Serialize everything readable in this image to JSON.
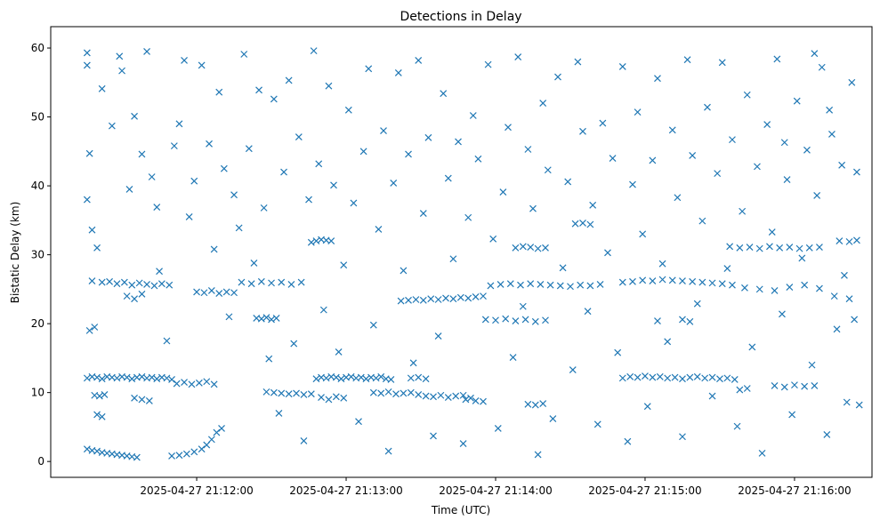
{
  "chart_data": {
    "type": "scatter",
    "title": "Detections in Delay",
    "xlabel": "Time (UTC)",
    "ylabel": "Bistatic Delay (km)",
    "x_units": "seconds relative to 2025-04-27 21:12:00 UTC",
    "xlim": [
      -58.6,
      271.1
    ],
    "ylim": [
      -2.3,
      63.1
    ],
    "grid": false,
    "marker": "x",
    "color": "#1f77b4",
    "x_ticks": [
      {
        "value": 0,
        "label": "2025-04-27 21:12:00"
      },
      {
        "value": 60,
        "label": "2025-04-27 21:13:00"
      },
      {
        "value": 120,
        "label": "2025-04-27 21:14:00"
      },
      {
        "value": 180,
        "label": "2025-04-27 21:15:00"
      },
      {
        "value": 240,
        "label": "2025-04-27 21:16:00"
      }
    ],
    "y_ticks": [
      {
        "value": 0,
        "label": "0"
      },
      {
        "value": 10,
        "label": "10"
      },
      {
        "value": 20,
        "label": "20"
      },
      {
        "value": 30,
        "label": "30"
      },
      {
        "value": 40,
        "label": "40"
      },
      {
        "value": 50,
        "label": "50"
      },
      {
        "value": 60,
        "label": "60"
      }
    ],
    "points": [
      [
        -44,
        12.1
      ],
      [
        -42,
        12.3
      ],
      [
        -40,
        12.2
      ],
      [
        -38,
        12.0
      ],
      [
        -36,
        12.3
      ],
      [
        -34,
        12.2
      ],
      [
        -32,
        12.1
      ],
      [
        -30,
        12.3
      ],
      [
        -28,
        12.2
      ],
      [
        -26,
        12.0
      ],
      [
        -24,
        12.2
      ],
      [
        -22,
        12.3
      ],
      [
        -20,
        12.1
      ],
      [
        -18,
        12.2
      ],
      [
        -16,
        12.0
      ],
      [
        -14,
        12.2
      ],
      [
        -12,
        12.1
      ],
      [
        -10,
        11.9
      ],
      [
        -44,
        1.8
      ],
      [
        -42,
        1.6
      ],
      [
        -40,
        1.5
      ],
      [
        -38,
        1.3
      ],
      [
        -36,
        1.2
      ],
      [
        -34,
        1.1
      ],
      [
        -32,
        1.0
      ],
      [
        -30,
        0.9
      ],
      [
        -28,
        0.8
      ],
      [
        -26,
        0.7
      ],
      [
        -24,
        0.6
      ],
      [
        -10,
        0.8
      ],
      [
        -7,
        0.9
      ],
      [
        -4,
        1.1
      ],
      [
        -1,
        1.4
      ],
      [
        2,
        1.8
      ],
      [
        4,
        2.4
      ],
      [
        6,
        3.2
      ],
      [
        8,
        4.2
      ],
      [
        10,
        4.8
      ],
      [
        -42,
        26.2
      ],
      [
        -38,
        26.0
      ],
      [
        -35,
        26.1
      ],
      [
        -32,
        25.8
      ],
      [
        -29,
        26.0
      ],
      [
        -26,
        25.6
      ],
      [
        -23,
        25.9
      ],
      [
        -20,
        25.7
      ],
      [
        -17,
        25.5
      ],
      [
        -14,
        25.8
      ],
      [
        -11,
        25.6
      ],
      [
        -28,
        24.0
      ],
      [
        -25,
        23.6
      ],
      [
        -22,
        24.3
      ],
      [
        0,
        24.6
      ],
      [
        3,
        24.5
      ],
      [
        6,
        24.8
      ],
      [
        9,
        24.4
      ],
      [
        12,
        24.6
      ],
      [
        15,
        24.5
      ],
      [
        -41,
        9.6
      ],
      [
        -39,
        9.5
      ],
      [
        -37,
        9.7
      ],
      [
        -40,
        6.8
      ],
      [
        -38,
        6.5
      ],
      [
        -8,
        11.3
      ],
      [
        -5,
        11.5
      ],
      [
        -2,
        11.2
      ],
      [
        1,
        11.4
      ],
      [
        4,
        11.6
      ],
      [
        7,
        11.2
      ],
      [
        -25,
        9.2
      ],
      [
        -22,
        9.0
      ],
      [
        -19,
        8.8
      ],
      [
        24,
        20.8
      ],
      [
        26,
        20.7
      ],
      [
        28,
        20.9
      ],
      [
        30,
        20.6
      ],
      [
        32,
        20.8
      ],
      [
        18,
        26.0
      ],
      [
        22,
        25.8
      ],
      [
        26,
        26.1
      ],
      [
        30,
        25.9
      ],
      [
        34,
        26.0
      ],
      [
        38,
        25.7
      ],
      [
        42,
        26.0
      ],
      [
        28,
        10.1
      ],
      [
        31,
        10.0
      ],
      [
        34,
        9.9
      ],
      [
        37,
        9.8
      ],
      [
        40,
        9.9
      ],
      [
        43,
        9.7
      ],
      [
        46,
        9.8
      ],
      [
        46,
        31.8
      ],
      [
        48,
        32.0
      ],
      [
        50,
        32.2
      ],
      [
        52,
        32.1
      ],
      [
        54,
        32.0
      ],
      [
        48,
        12.0
      ],
      [
        50,
        12.2
      ],
      [
        52,
        12.1
      ],
      [
        54,
        12.3
      ],
      [
        56,
        12.2
      ],
      [
        58,
        12.0
      ],
      [
        60,
        12.2
      ],
      [
        62,
        12.3
      ],
      [
        64,
        12.1
      ],
      [
        66,
        12.2
      ],
      [
        68,
        12.0
      ],
      [
        70,
        12.2
      ],
      [
        72,
        12.1
      ],
      [
        74,
        12.3
      ],
      [
        76,
        12.0
      ],
      [
        78,
        11.9
      ],
      [
        50,
        9.3
      ],
      [
        53,
        9.0
      ],
      [
        56,
        9.4
      ],
      [
        59,
        9.2
      ],
      [
        71,
        10.0
      ],
      [
        74,
        9.9
      ],
      [
        77,
        10.1
      ],
      [
        80,
        9.8
      ],
      [
        83,
        9.9
      ],
      [
        86,
        10.0
      ],
      [
        89,
        9.7
      ],
      [
        92,
        9.5
      ],
      [
        95,
        9.4
      ],
      [
        98,
        9.6
      ],
      [
        101,
        9.3
      ],
      [
        104,
        9.5
      ],
      [
        107,
        9.6
      ],
      [
        82,
        23.3
      ],
      [
        85,
        23.4
      ],
      [
        88,
        23.5
      ],
      [
        91,
        23.4
      ],
      [
        94,
        23.6
      ],
      [
        97,
        23.5
      ],
      [
        100,
        23.7
      ],
      [
        103,
        23.6
      ],
      [
        106,
        23.8
      ],
      [
        109,
        23.7
      ],
      [
        112,
        23.9
      ],
      [
        115,
        24.0
      ],
      [
        118,
        25.5
      ],
      [
        122,
        25.7
      ],
      [
        126,
        25.8
      ],
      [
        130,
        25.6
      ],
      [
        134,
        25.8
      ],
      [
        138,
        25.7
      ],
      [
        142,
        25.6
      ],
      [
        146,
        25.5
      ],
      [
        150,
        25.4
      ],
      [
        154,
        25.6
      ],
      [
        158,
        25.5
      ],
      [
        162,
        25.7
      ],
      [
        128,
        31.0
      ],
      [
        131,
        31.2
      ],
      [
        134,
        31.1
      ],
      [
        137,
        30.9
      ],
      [
        140,
        31.0
      ],
      [
        116,
        20.6
      ],
      [
        120,
        20.5
      ],
      [
        124,
        20.7
      ],
      [
        128,
        20.4
      ],
      [
        132,
        20.6
      ],
      [
        136,
        20.3
      ],
      [
        140,
        20.5
      ],
      [
        133,
        8.3
      ],
      [
        136,
        8.2
      ],
      [
        139,
        8.4
      ],
      [
        108,
        9.0
      ],
      [
        110,
        9.2
      ],
      [
        112,
        8.8
      ],
      [
        86,
        12.1
      ],
      [
        89,
        12.2
      ],
      [
        92,
        12.0
      ],
      [
        152,
        34.5
      ],
      [
        155,
        34.6
      ],
      [
        158,
        34.4
      ],
      [
        171,
        26.0
      ],
      [
        175,
        26.1
      ],
      [
        179,
        26.3
      ],
      [
        183,
        26.2
      ],
      [
        187,
        26.4
      ],
      [
        191,
        26.3
      ],
      [
        195,
        26.2
      ],
      [
        199,
        26.1
      ],
      [
        203,
        26.0
      ],
      [
        207,
        25.9
      ],
      [
        211,
        25.8
      ],
      [
        215,
        25.6
      ],
      [
        171,
        12.1
      ],
      [
        174,
        12.3
      ],
      [
        177,
        12.2
      ],
      [
        180,
        12.4
      ],
      [
        183,
        12.2
      ],
      [
        186,
        12.3
      ],
      [
        189,
        12.1
      ],
      [
        192,
        12.2
      ],
      [
        195,
        12.0
      ],
      [
        198,
        12.2
      ],
      [
        201,
        12.3
      ],
      [
        204,
        12.1
      ],
      [
        207,
        12.2
      ],
      [
        210,
        12.0
      ],
      [
        213,
        12.1
      ],
      [
        216,
        11.9
      ],
      [
        185,
        20.4
      ],
      [
        195,
        20.6
      ],
      [
        198,
        20.3
      ],
      [
        214,
        31.2
      ],
      [
        218,
        31.0
      ],
      [
        222,
        31.1
      ],
      [
        226,
        30.9
      ],
      [
        230,
        31.2
      ],
      [
        234,
        31.0
      ],
      [
        238,
        31.1
      ],
      [
        242,
        30.9
      ],
      [
        246,
        31.0
      ],
      [
        250,
        31.1
      ],
      [
        220,
        25.2
      ],
      [
        226,
        25.0
      ],
      [
        232,
        24.8
      ],
      [
        238,
        25.3
      ],
      [
        244,
        25.6
      ],
      [
        250,
        25.1
      ],
      [
        256,
        24.0
      ],
      [
        262,
        23.6
      ],
      [
        232,
        11.0
      ],
      [
        236,
        10.8
      ],
      [
        240,
        11.1
      ],
      [
        244,
        10.9
      ],
      [
        248,
        11.0
      ],
      [
        258,
        32.0
      ],
      [
        262,
        31.9
      ],
      [
        265,
        32.1
      ],
      [
        218,
        10.4
      ],
      [
        221,
        10.6
      ],
      [
        -44,
        59.3
      ],
      [
        -44,
        57.5
      ],
      [
        -43,
        44.7
      ],
      [
        -44,
        38.0
      ],
      [
        -42,
        33.6
      ],
      [
        -40,
        31.0
      ],
      [
        -41,
        19.5
      ],
      [
        -43,
        19.0
      ],
      [
        -38,
        54.1
      ],
      [
        -34,
        48.7
      ],
      [
        -31,
        58.8
      ],
      [
        -30,
        56.7
      ],
      [
        -27,
        39.5
      ],
      [
        -25,
        50.1
      ],
      [
        -22,
        44.6
      ],
      [
        -20,
        59.5
      ],
      [
        -18,
        41.3
      ],
      [
        -16,
        36.9
      ],
      [
        -15,
        27.6
      ],
      [
        -12,
        17.5
      ],
      [
        -9,
        45.8
      ],
      [
        -7,
        49.0
      ],
      [
        -5,
        58.2
      ],
      [
        -3,
        35.5
      ],
      [
        -1,
        40.7
      ],
      [
        2,
        57.5
      ],
      [
        5,
        46.1
      ],
      [
        7,
        30.8
      ],
      [
        9,
        53.6
      ],
      [
        11,
        42.5
      ],
      [
        13,
        21.0
      ],
      [
        15,
        38.7
      ],
      [
        17,
        33.9
      ],
      [
        19,
        59.1
      ],
      [
        21,
        45.4
      ],
      [
        23,
        28.8
      ],
      [
        25,
        53.9
      ],
      [
        27,
        36.8
      ],
      [
        29,
        14.9
      ],
      [
        31,
        52.6
      ],
      [
        33,
        7.0
      ],
      [
        35,
        42.0
      ],
      [
        37,
        55.3
      ],
      [
        39,
        17.1
      ],
      [
        41,
        47.1
      ],
      [
        43,
        3.0
      ],
      [
        45,
        38.0
      ],
      [
        47,
        59.6
      ],
      [
        49,
        43.2
      ],
      [
        51,
        22.0
      ],
      [
        53,
        54.5
      ],
      [
        55,
        40.1
      ],
      [
        57,
        15.9
      ],
      [
        59,
        28.5
      ],
      [
        61,
        51.0
      ],
      [
        63,
        37.5
      ],
      [
        65,
        5.8
      ],
      [
        67,
        45.0
      ],
      [
        69,
        57.0
      ],
      [
        71,
        19.8
      ],
      [
        73,
        33.7
      ],
      [
        75,
        48.0
      ],
      [
        77,
        1.5
      ],
      [
        79,
        40.4
      ],
      [
        81,
        56.4
      ],
      [
        83,
        27.7
      ],
      [
        85,
        44.6
      ],
      [
        87,
        14.3
      ],
      [
        89,
        58.2
      ],
      [
        91,
        36.0
      ],
      [
        93,
        47.0
      ],
      [
        95,
        3.7
      ],
      [
        97,
        18.2
      ],
      [
        99,
        53.4
      ],
      [
        101,
        41.1
      ],
      [
        103,
        29.4
      ],
      [
        105,
        46.4
      ],
      [
        107,
        2.6
      ],
      [
        109,
        35.4
      ],
      [
        111,
        50.2
      ],
      [
        113,
        43.9
      ],
      [
        115,
        8.7
      ],
      [
        117,
        57.6
      ],
      [
        119,
        32.3
      ],
      [
        121,
        4.8
      ],
      [
        123,
        39.1
      ],
      [
        125,
        48.5
      ],
      [
        127,
        15.1
      ],
      [
        129,
        58.7
      ],
      [
        131,
        22.5
      ],
      [
        133,
        45.3
      ],
      [
        135,
        36.7
      ],
      [
        137,
        1.0
      ],
      [
        139,
        52.0
      ],
      [
        141,
        42.3
      ],
      [
        143,
        6.2
      ],
      [
        145,
        55.8
      ],
      [
        147,
        28.1
      ],
      [
        149,
        40.6
      ],
      [
        151,
        13.3
      ],
      [
        153,
        58.0
      ],
      [
        155,
        47.9
      ],
      [
        157,
        21.8
      ],
      [
        159,
        37.2
      ],
      [
        161,
        5.4
      ],
      [
        163,
        49.1
      ],
      [
        165,
        30.3
      ],
      [
        167,
        44.0
      ],
      [
        169,
        15.8
      ],
      [
        171,
        57.3
      ],
      [
        173,
        2.9
      ],
      [
        175,
        40.2
      ],
      [
        177,
        50.7
      ],
      [
        179,
        33.0
      ],
      [
        181,
        8.0
      ],
      [
        183,
        43.7
      ],
      [
        185,
        55.6
      ],
      [
        187,
        28.7
      ],
      [
        189,
        17.4
      ],
      [
        191,
        48.1
      ],
      [
        193,
        38.3
      ],
      [
        195,
        3.6
      ],
      [
        197,
        58.3
      ],
      [
        199,
        44.4
      ],
      [
        201,
        22.9
      ],
      [
        203,
        34.9
      ],
      [
        205,
        51.4
      ],
      [
        207,
        9.5
      ],
      [
        209,
        41.8
      ],
      [
        211,
        57.9
      ],
      [
        213,
        28.0
      ],
      [
        215,
        46.7
      ],
      [
        217,
        5.1
      ],
      [
        219,
        36.3
      ],
      [
        221,
        53.2
      ],
      [
        223,
        16.6
      ],
      [
        225,
        42.8
      ],
      [
        227,
        1.2
      ],
      [
        229,
        48.9
      ],
      [
        231,
        33.3
      ],
      [
        233,
        58.4
      ],
      [
        235,
        21.4
      ],
      [
        237,
        40.9
      ],
      [
        239,
        6.8
      ],
      [
        241,
        52.3
      ],
      [
        243,
        29.5
      ],
      [
        245,
        45.2
      ],
      [
        247,
        14.0
      ],
      [
        249,
        38.6
      ],
      [
        251,
        57.2
      ],
      [
        253,
        3.9
      ],
      [
        255,
        47.5
      ],
      [
        257,
        19.2
      ],
      [
        259,
        43.0
      ],
      [
        261,
        8.6
      ],
      [
        263,
        55.0
      ],
      [
        265,
        42.0
      ],
      [
        266,
        8.2
      ],
      [
        264,
        20.6
      ],
      [
        260,
        27.0
      ],
      [
        254,
        51.0
      ],
      [
        248,
        59.2
      ],
      [
        236,
        46.3
      ]
    ]
  }
}
